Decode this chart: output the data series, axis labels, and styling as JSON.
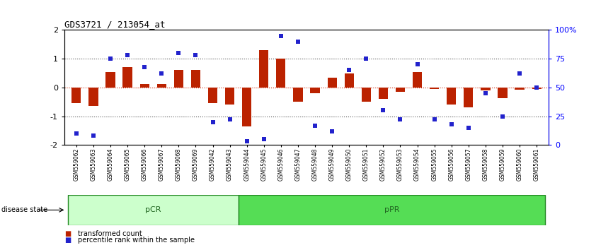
{
  "title": "GDS3721 / 213054_at",
  "samples": [
    "GSM559062",
    "GSM559063",
    "GSM559064",
    "GSM559065",
    "GSM559066",
    "GSM559067",
    "GSM559068",
    "GSM559069",
    "GSM559042",
    "GSM559043",
    "GSM559044",
    "GSM559045",
    "GSM559046",
    "GSM559047",
    "GSM559048",
    "GSM559049",
    "GSM559050",
    "GSM559051",
    "GSM559052",
    "GSM559053",
    "GSM559054",
    "GSM559055",
    "GSM559056",
    "GSM559057",
    "GSM559058",
    "GSM559059",
    "GSM559060",
    "GSM559061"
  ],
  "transformed_count": [
    -0.55,
    -0.65,
    0.55,
    0.7,
    0.12,
    0.12,
    0.6,
    0.62,
    -0.55,
    -0.6,
    -1.35,
    1.3,
    1.0,
    -0.5,
    -0.2,
    0.35,
    0.5,
    -0.5,
    -0.4,
    -0.15,
    0.55,
    -0.05,
    -0.6,
    -0.7,
    -0.1,
    -0.38,
    -0.07,
    -0.05
  ],
  "percentile_rank": [
    10,
    8,
    75,
    78,
    68,
    62,
    80,
    78,
    20,
    22,
    3,
    5,
    95,
    90,
    17,
    12,
    65,
    75,
    30,
    22,
    70,
    22,
    18,
    15,
    45,
    25,
    62,
    50
  ],
  "pCR_count": 10,
  "pPR_count": 18,
  "bar_color": "#bb2200",
  "dot_color": "#2222cc",
  "zero_line_color": "#cc2200",
  "dotted_line_color": "#555555",
  "ylim": [
    -2.0,
    2.0
  ],
  "y_ticks_left": [
    -2,
    -1,
    0,
    1,
    2
  ],
  "y_ticks_right": [
    0,
    25,
    50,
    75,
    100
  ],
  "pCR_color": "#ccffcc",
  "pPR_color": "#55dd55",
  "group_edge_color": "#228822",
  "bg_color": "#ffffff"
}
